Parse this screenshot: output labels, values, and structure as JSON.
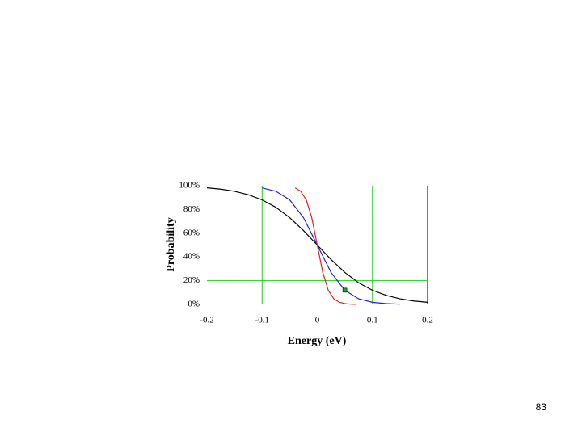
{
  "chart_data": {
    "type": "line",
    "xlabel": "Energy (eV)",
    "ylabel": "Probability",
    "xlim": [
      -0.2,
      0.2
    ],
    "xticks": [
      -0.2,
      -0.1,
      0,
      0.1,
      0.2
    ],
    "ylim": [
      0,
      100
    ],
    "yticks": [
      {
        "value": 0,
        "label": "0%"
      },
      {
        "value": 20,
        "label": "20%"
      },
      {
        "value": 40,
        "label": "40%"
      },
      {
        "value": 60,
        "label": "60%"
      },
      {
        "value": 80,
        "label": "80%"
      },
      {
        "value": 100,
        "label": "100%"
      }
    ],
    "reference_lines": {
      "color": "#22cc22",
      "x": [
        -0.1,
        0.1
      ],
      "y": [
        20
      ]
    },
    "marker": {
      "color": "#22aa22",
      "x": 0.05,
      "y": 12
    },
    "series": [
      {
        "color": "#000000",
        "x": [
          -0.2,
          -0.175,
          -0.15,
          -0.125,
          -0.1,
          -0.075,
          -0.05,
          -0.025,
          0,
          0.025,
          0.05,
          0.075,
          0.1,
          0.125,
          0.15,
          0.175,
          0.2
        ],
        "values": [
          98.2,
          97.1,
          95.3,
          92.4,
          88.1,
          81.8,
          73.1,
          62.2,
          50,
          37.8,
          26.9,
          18.2,
          11.9,
          7.6,
          4.7,
          2.9,
          1.8
        ]
      },
      {
        "color": "#2222cc",
        "x": [
          -0.1,
          -0.075,
          -0.05,
          -0.025,
          0,
          0.025,
          0.05,
          0.075,
          0.1,
          0.125,
          0.15
        ],
        "values": [
          98.2,
          95.3,
          88.1,
          73.1,
          50,
          26.9,
          11.9,
          4.7,
          1.8,
          0.7,
          0.2
        ]
      },
      {
        "color": "#dd2222",
        "x": [
          -0.04,
          -0.03,
          -0.02,
          -0.01,
          0,
          0.01,
          0.02,
          0.03,
          0.04,
          0.05,
          0.06,
          0.07
        ],
        "values": [
          98.2,
          95.3,
          88.1,
          73.1,
          50,
          26.9,
          11.9,
          4.7,
          1.8,
          0.7,
          0.2,
          0.1
        ]
      }
    ]
  },
  "page_number": "83"
}
